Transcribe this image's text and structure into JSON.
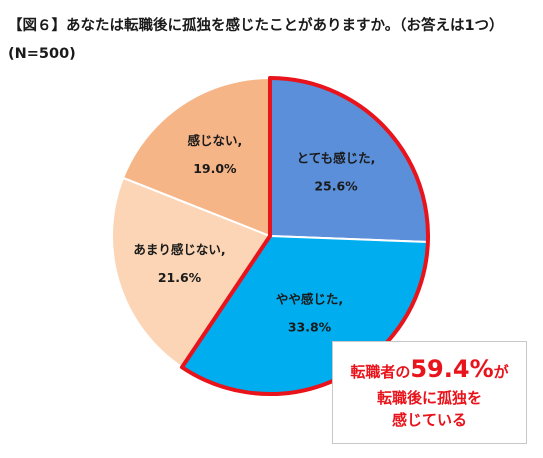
{
  "title": {
    "line1": "【図６】あなたは転職後に孤独を感じたことがありますか。（お答えは1つ）",
    "line2": "(N=500)"
  },
  "chart_data": {
    "type": "pie",
    "title": "【図６】あなたは転職後に孤独を感じたことがありますか。（お答えは1つ）",
    "subtitle": "(N=500)",
    "unit": "%",
    "slices": [
      {
        "label": "とても感じた,",
        "value": 25.6,
        "value_text": "25.6%",
        "color": "#5b8fd9"
      },
      {
        "label": "やや感じた,",
        "value": 33.8,
        "value_text": "33.8%",
        "color": "#00aef0"
      },
      {
        "label": "あまり感じない,",
        "value": 21.6,
        "value_text": "21.6%",
        "color": "#fbd5b5"
      },
      {
        "label": "感じない,",
        "value": 19.0,
        "value_text": "19.0%",
        "color": "#f6b587"
      }
    ],
    "highlight": {
      "slices": [
        0,
        1
      ],
      "outline_color": "#e8131b"
    }
  },
  "callout": {
    "prefix": "転職者の",
    "value": "59.4%",
    "suffix": "が",
    "line2": "転職後に孤独を",
    "line3": "感じている",
    "color": "#e8131b"
  }
}
